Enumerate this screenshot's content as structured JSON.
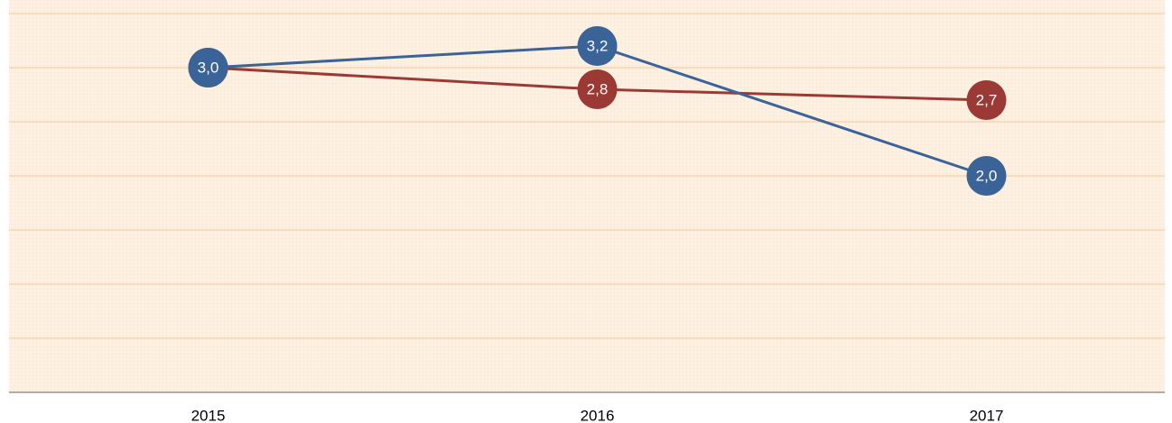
{
  "chart_data": {
    "type": "line",
    "categories": [
      "2015",
      "2016",
      "2017"
    ],
    "series": [
      {
        "color": "#9b3a35",
        "values": [
          3.0,
          2.8,
          2.7
        ],
        "value_labels": [
          "3,0",
          "2,8",
          "2,7"
        ]
      },
      {
        "color": "#3a6397",
        "values": [
          3.0,
          3.2,
          2.0
        ],
        "value_labels": [
          "3,0",
          "3,2",
          "2,0"
        ]
      }
    ],
    "ylim": [
      0,
      3.5
    ],
    "yticks": [
      0.5,
      1,
      1.5,
      2,
      2.5,
      3,
      3.5
    ],
    "grid": true
  }
}
